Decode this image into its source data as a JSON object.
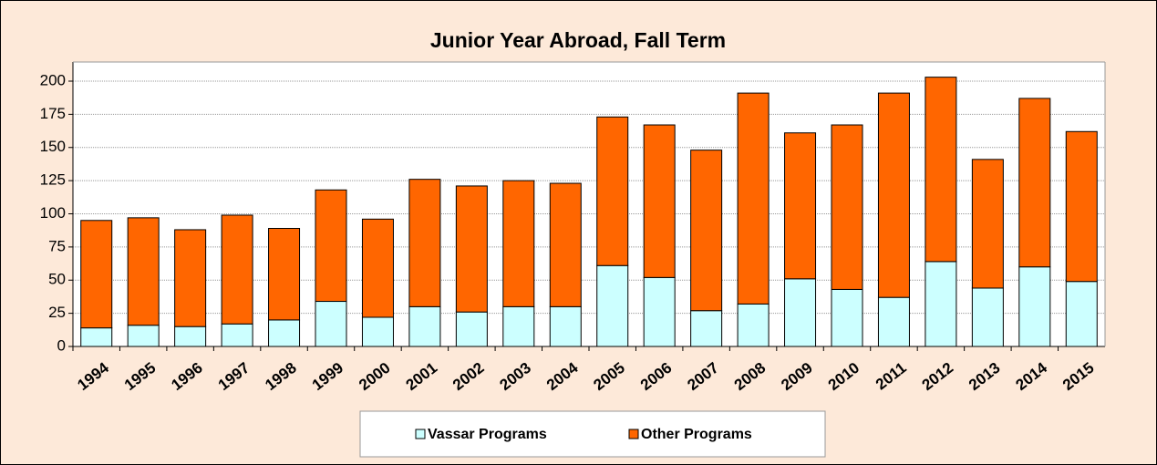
{
  "chart_data": {
    "type": "bar",
    "stacked": true,
    "title": "Junior Year Abroad, Fall Term",
    "categories": [
      "1994",
      "1995",
      "1996",
      "1997",
      "1998",
      "1999",
      "2000",
      "2001",
      "2002",
      "2003",
      "2004",
      "2005",
      "2006",
      "2007",
      "2008",
      "2009",
      "2010",
      "2011",
      "2012",
      "2013",
      "2014",
      "2015"
    ],
    "series": [
      {
        "name": "Vassar Programs",
        "color": "#ccffff",
        "values": [
          14,
          16,
          15,
          17,
          20,
          34,
          22,
          30,
          26,
          30,
          30,
          61,
          52,
          27,
          32,
          51,
          43,
          37,
          64,
          44,
          60,
          49
        ]
      },
      {
        "name": "Other Programs",
        "color": "#ff6600",
        "values": [
          81,
          81,
          73,
          82,
          69,
          84,
          74,
          96,
          95,
          95,
          93,
          112,
          115,
          121,
          159,
          110,
          124,
          154,
          139,
          97,
          127,
          113
        ]
      }
    ],
    "ylim": [
      0,
      200
    ],
    "yticks": [
      0,
      25,
      50,
      75,
      100,
      125,
      150,
      175,
      200
    ],
    "grid": true,
    "legend": "bottom"
  }
}
